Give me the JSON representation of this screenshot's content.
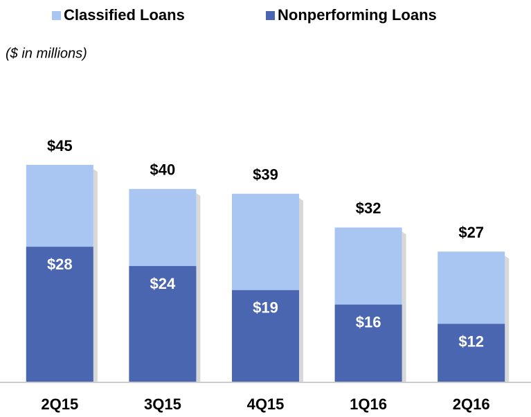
{
  "chart_data": {
    "type": "bar",
    "subtitle": "($ in millions)",
    "categories": [
      "2Q15",
      "3Q15",
      "4Q15",
      "1Q16",
      "2Q16"
    ],
    "series": [
      {
        "name": "Classified Loans",
        "color": "#a9c6f2",
        "values": [
          45,
          40,
          39,
          32,
          27
        ],
        "value_labels": [
          "$45",
          "$40",
          "$39",
          "$32",
          "$27"
        ]
      },
      {
        "name": "Nonperforming Loans",
        "color": "#4a66b0",
        "values": [
          28,
          24,
          19,
          16,
          12
        ],
        "value_labels": [
          "$28",
          "$24",
          "$19",
          "$16",
          "$12"
        ]
      }
    ]
  }
}
